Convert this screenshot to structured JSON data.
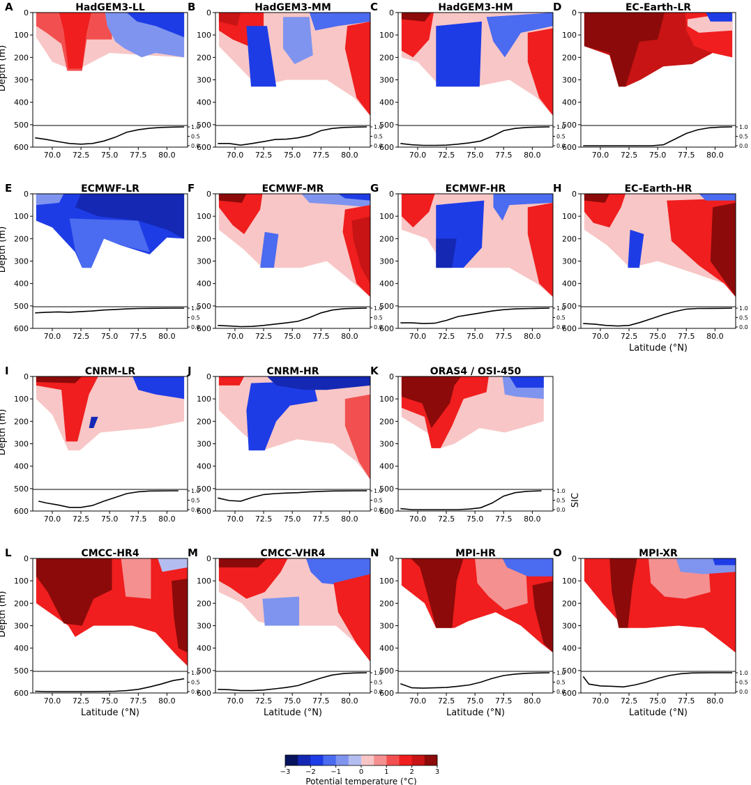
{
  "chart_data": {
    "type": "contour",
    "colorbar": {
      "label": "Potential temperature (°C)",
      "ticks": [
        "−3",
        "−2",
        "−1",
        "0",
        "1",
        "2",
        "3"
      ],
      "levels": [
        -3,
        -2.5,
        -2,
        -1.5,
        -1,
        -0.5,
        0,
        0.5,
        1,
        1.5,
        2,
        2.5,
        3
      ],
      "colors": [
        "#08135e",
        "#1428b4",
        "#1e3ce6",
        "#4b6bf0",
        "#7f94ee",
        "#b4bdf0",
        "#f8c6c6",
        "#f49090",
        "#f25050",
        "#f01e1e",
        "#c81414",
        "#8c0a0a"
      ]
    },
    "depth_axis": {
      "label": "Depth (m)",
      "ticks": [
        "0",
        "100",
        "200",
        "300",
        "400",
        "500",
        "600"
      ],
      "range": [
        0,
        600
      ]
    },
    "lat_axis": {
      "label": "Latitude (°N)",
      "ticks": [
        "70.0",
        "72.5",
        "75.0",
        "77.5",
        "80.0"
      ],
      "range": [
        68.3,
        81.8
      ]
    },
    "sic_axis": {
      "label": "SIC",
      "ticks": [
        "0.0",
        "0.5",
        "1.0"
      ],
      "range": [
        0,
        1
      ]
    },
    "panels": [
      {
        "letter": "A",
        "title": "HadGEM3-LL",
        "sic": [
          [
            68.5,
            0.42
          ],
          [
            69.5,
            0.33
          ],
          [
            70.5,
            0.22
          ],
          [
            71.5,
            0.12
          ],
          [
            72.5,
            0.08
          ],
          [
            73.5,
            0.12
          ],
          [
            74.5,
            0.25
          ],
          [
            75.5,
            0.45
          ],
          [
            76.5,
            0.72
          ],
          [
            77.5,
            0.85
          ],
          [
            78.5,
            0.93
          ],
          [
            79.5,
            0.97
          ],
          [
            80.5,
            0.99
          ],
          [
            81.5,
            1.0
          ]
        ]
      },
      {
        "letter": "B",
        "title": "HadGEM3-MM",
        "sic": [
          [
            68.5,
            0.12
          ],
          [
            69.5,
            0.12
          ],
          [
            70.5,
            0.03
          ],
          [
            71.5,
            0.12
          ],
          [
            72.5,
            0.22
          ],
          [
            73.5,
            0.33
          ],
          [
            74.5,
            0.35
          ],
          [
            75.5,
            0.42
          ],
          [
            76.5,
            0.55
          ],
          [
            77.5,
            0.8
          ],
          [
            78.5,
            0.92
          ],
          [
            79.5,
            0.97
          ],
          [
            80.5,
            0.99
          ],
          [
            81.5,
            1.0
          ]
        ]
      },
      {
        "letter": "C",
        "title": "HadGEM3-HM",
        "sic": [
          [
            68.5,
            0.12
          ],
          [
            69.5,
            0.05
          ],
          [
            70.5,
            0.02
          ],
          [
            71.5,
            0.02
          ],
          [
            72.5,
            0.03
          ],
          [
            73.5,
            0.08
          ],
          [
            74.5,
            0.15
          ],
          [
            75.5,
            0.25
          ],
          [
            76.5,
            0.5
          ],
          [
            77.5,
            0.8
          ],
          [
            78.5,
            0.92
          ],
          [
            79.5,
            0.97
          ],
          [
            80.5,
            0.99
          ],
          [
            81.5,
            1.0
          ]
        ]
      },
      {
        "letter": "D",
        "title": "EC-Earth-LR",
        "sic": [
          [
            68.5,
            0.0
          ],
          [
            70.5,
            0.0
          ],
          [
            72.5,
            0.0
          ],
          [
            74.5,
            0.0
          ],
          [
            75.5,
            0.05
          ],
          [
            76.5,
            0.35
          ],
          [
            77.5,
            0.65
          ],
          [
            78.5,
            0.85
          ],
          [
            79.5,
            0.95
          ],
          [
            80.5,
            0.99
          ],
          [
            81.5,
            1.0
          ]
        ]
      },
      {
        "letter": "E",
        "title": "ECMWF-LR",
        "sic": [
          [
            68.5,
            0.75
          ],
          [
            69.5,
            0.78
          ],
          [
            70.5,
            0.8
          ],
          [
            71.5,
            0.78
          ],
          [
            72.5,
            0.82
          ],
          [
            73.5,
            0.85
          ],
          [
            74.5,
            0.9
          ],
          [
            75.5,
            0.93
          ],
          [
            76.5,
            0.96
          ],
          [
            77.5,
            0.98
          ],
          [
            78.5,
            0.99
          ],
          [
            80.5,
            1.0
          ],
          [
            81.5,
            1.0
          ]
        ]
      },
      {
        "letter": "F",
        "title": "ECMWF-MR",
        "sic": [
          [
            68.5,
            0.08
          ],
          [
            69.5,
            0.05
          ],
          [
            70.5,
            0.02
          ],
          [
            71.5,
            0.03
          ],
          [
            72.5,
            0.08
          ],
          [
            73.5,
            0.15
          ],
          [
            74.5,
            0.22
          ],
          [
            75.5,
            0.3
          ],
          [
            76.5,
            0.5
          ],
          [
            77.5,
            0.75
          ],
          [
            78.5,
            0.9
          ],
          [
            79.5,
            0.97
          ],
          [
            80.5,
            0.99
          ],
          [
            81.5,
            1.0
          ]
        ]
      },
      {
        "letter": "G",
        "title": "ECMWF-HR",
        "sic": [
          [
            68.5,
            0.22
          ],
          [
            69.5,
            0.22
          ],
          [
            70.5,
            0.18
          ],
          [
            71.5,
            0.2
          ],
          [
            72.5,
            0.35
          ],
          [
            73.5,
            0.55
          ],
          [
            74.5,
            0.65
          ],
          [
            75.5,
            0.75
          ],
          [
            76.5,
            0.85
          ],
          [
            77.5,
            0.92
          ],
          [
            78.5,
            0.96
          ],
          [
            80.5,
            0.99
          ],
          [
            81.5,
            1.0
          ]
        ]
      },
      {
        "letter": "H",
        "title": "EC-Earth-HR",
        "sic": [
          [
            68.5,
            0.18
          ],
          [
            69.5,
            0.15
          ],
          [
            70.5,
            0.08
          ],
          [
            71.5,
            0.05
          ],
          [
            72.5,
            0.08
          ],
          [
            73.5,
            0.25
          ],
          [
            74.5,
            0.45
          ],
          [
            75.5,
            0.65
          ],
          [
            76.5,
            0.82
          ],
          [
            77.5,
            0.95
          ],
          [
            78.5,
            0.98
          ],
          [
            80.5,
            0.99
          ],
          [
            81.5,
            1.0
          ]
        ]
      },
      {
        "letter": "I",
        "title": "CNRM-LR",
        "sic": [
          [
            68.8,
            0.45
          ],
          [
            69.5,
            0.35
          ],
          [
            70.5,
            0.25
          ],
          [
            71.5,
            0.12
          ],
          [
            72.5,
            0.12
          ],
          [
            73.5,
            0.22
          ],
          [
            74.5,
            0.45
          ],
          [
            75.5,
            0.65
          ],
          [
            76.5,
            0.85
          ],
          [
            77.5,
            0.95
          ],
          [
            78.5,
            0.99
          ],
          [
            80.5,
            1.0
          ],
          [
            81.0,
            1.0
          ]
        ]
      },
      {
        "letter": "J",
        "title": "CNRM-HR",
        "sic": [
          [
            68.5,
            0.62
          ],
          [
            69.5,
            0.48
          ],
          [
            70.5,
            0.45
          ],
          [
            71.5,
            0.65
          ],
          [
            72.5,
            0.8
          ],
          [
            73.5,
            0.85
          ],
          [
            74.5,
            0.88
          ],
          [
            75.5,
            0.9
          ],
          [
            76.5,
            0.94
          ],
          [
            77.5,
            0.97
          ],
          [
            78.5,
            0.99
          ],
          [
            80.5,
            1.0
          ],
          [
            81.5,
            1.0
          ]
        ]
      },
      {
        "letter": "K",
        "title": "ORAS4 / OSI-450",
        "sic": [
          [
            68.5,
            0.05
          ],
          [
            69.5,
            0.0
          ],
          [
            71.5,
            0.0
          ],
          [
            73.5,
            0.0
          ],
          [
            74.5,
            0.03
          ],
          [
            75.5,
            0.1
          ],
          [
            76.5,
            0.35
          ],
          [
            77.5,
            0.72
          ],
          [
            78.5,
            0.9
          ],
          [
            79.5,
            0.97
          ],
          [
            80.8,
            1.0
          ]
        ]
      },
      {
        "letter": "L",
        "title": "CMCC-HR4",
        "sic": [
          [
            68.5,
            0.02
          ],
          [
            69.5,
            0.0
          ],
          [
            71.5,
            0.0
          ],
          [
            73.5,
            0.0
          ],
          [
            75.5,
            0.02
          ],
          [
            76.5,
            0.05
          ],
          [
            77.5,
            0.12
          ],
          [
            78.5,
            0.25
          ],
          [
            79.5,
            0.4
          ],
          [
            80.5,
            0.58
          ],
          [
            81.5,
            0.68
          ]
        ]
      },
      {
        "letter": "M",
        "title": "CMCC-VHR4",
        "sic": [
          [
            68.5,
            0.12
          ],
          [
            69.5,
            0.1
          ],
          [
            70.5,
            0.05
          ],
          [
            71.5,
            0.05
          ],
          [
            72.5,
            0.08
          ],
          [
            73.5,
            0.15
          ],
          [
            74.5,
            0.22
          ],
          [
            75.5,
            0.32
          ],
          [
            76.5,
            0.52
          ],
          [
            77.5,
            0.72
          ],
          [
            78.5,
            0.88
          ],
          [
            79.5,
            0.96
          ],
          [
            80.5,
            0.99
          ],
          [
            81.5,
            1.0
          ]
        ]
      },
      {
        "letter": "N",
        "title": "MPI-HR",
        "sic": [
          [
            68.5,
            0.42
          ],
          [
            69.5,
            0.2
          ],
          [
            70.5,
            0.18
          ],
          [
            71.5,
            0.2
          ],
          [
            72.5,
            0.22
          ],
          [
            73.5,
            0.28
          ],
          [
            74.5,
            0.35
          ],
          [
            75.5,
            0.5
          ],
          [
            76.5,
            0.7
          ],
          [
            77.5,
            0.85
          ],
          [
            78.5,
            0.93
          ],
          [
            79.5,
            0.97
          ],
          [
            80.5,
            0.99
          ],
          [
            81.5,
            1.0
          ]
        ]
      },
      {
        "letter": "O",
        "title": "MPI-XR",
        "sic": [
          [
            68.5,
            0.8
          ],
          [
            69.0,
            0.4
          ],
          [
            70.0,
            0.3
          ],
          [
            71.0,
            0.28
          ],
          [
            72.0,
            0.25
          ],
          [
            73.0,
            0.35
          ],
          [
            74.0,
            0.5
          ],
          [
            75.0,
            0.7
          ],
          [
            76.0,
            0.85
          ],
          [
            77.0,
            0.95
          ],
          [
            78.0,
            0.99
          ],
          [
            79.5,
            1.0
          ],
          [
            81.5,
            1.0
          ]
        ]
      }
    ]
  }
}
